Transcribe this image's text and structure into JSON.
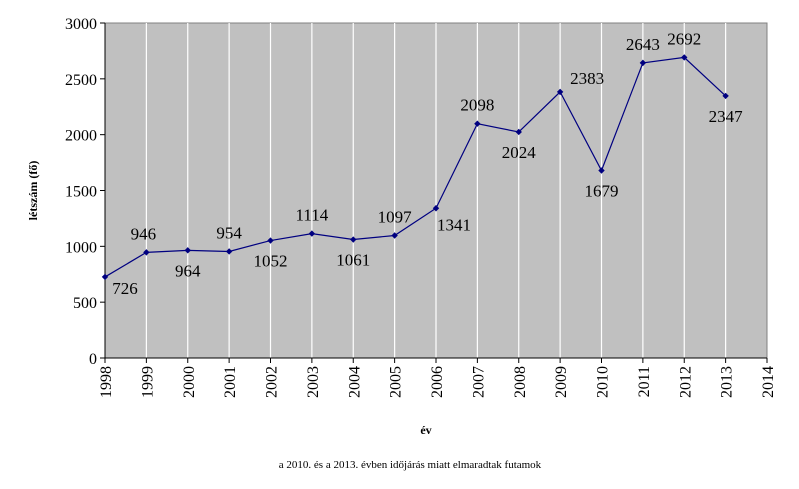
{
  "chart_data": {
    "type": "line",
    "x": [
      1998,
      1999,
      2000,
      2001,
      2002,
      2003,
      2004,
      2005,
      2006,
      2007,
      2008,
      2009,
      2010,
      2011,
      2012,
      2013
    ],
    "values": [
      726,
      946,
      964,
      954,
      1052,
      1114,
      1061,
      1097,
      1341,
      2098,
      2024,
      2383,
      1679,
      2643,
      2692,
      2347
    ],
    "data_labels": [
      "726",
      "946",
      "964",
      "954",
      "1052",
      "1114",
      "1061",
      "1097",
      "1341",
      "2098",
      "2024",
      "2383",
      "1679",
      "2643",
      "2692",
      "2347"
    ],
    "xlabel": "év",
    "ylabel": "létszám (fő)",
    "xlim": [
      1998,
      2014
    ],
    "ylim": [
      0,
      3000
    ],
    "x_ticks": [
      "1998",
      "1999",
      "2000",
      "2001",
      "2002",
      "2003",
      "2004",
      "2005",
      "2006",
      "2007",
      "2008",
      "2009",
      "2010",
      "2011",
      "2012",
      "2013",
      "2014"
    ],
    "y_ticks": [
      "0",
      "500",
      "1000",
      "1500",
      "2000",
      "2500",
      "3000"
    ],
    "grid": "vertical",
    "legend": "none",
    "footnote": "a 2010. és a 2013. évben időjárás miatt elmaradtak futamok",
    "colors": {
      "plot_background": "#c0c0c0",
      "line": "#000080",
      "grid": "#ffffff"
    }
  }
}
